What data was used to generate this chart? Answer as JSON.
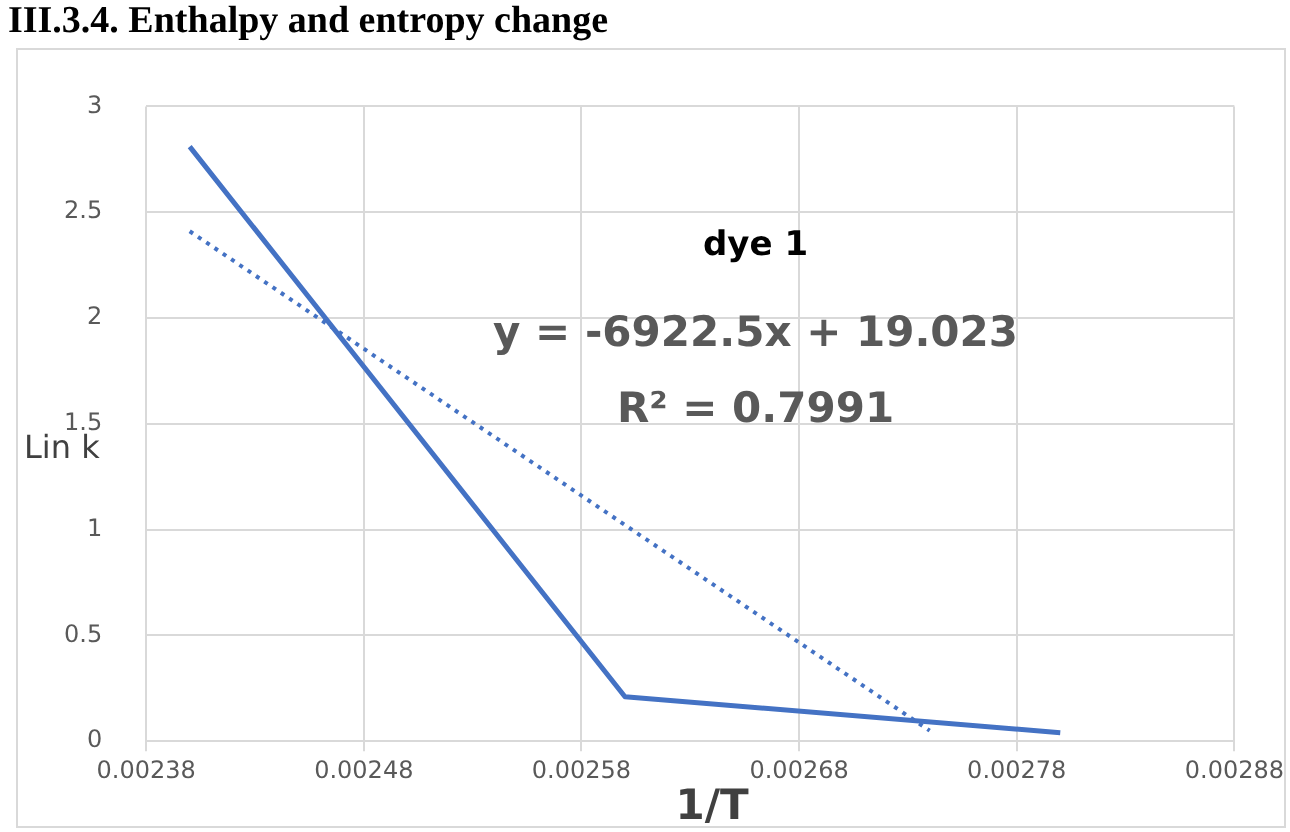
{
  "chart_data": {
    "type": "line",
    "title": "III.3.4. Enthalpy and entropy change",
    "xlabel": "1/T",
    "ylabel": "Lin k",
    "series": [
      {
        "type": "line",
        "color": "#4472c4",
        "line_style": "solid",
        "x": [
          0.0024,
          0.0026,
          0.0028
        ],
        "values": [
          2.81,
          0.21,
          0.04
        ]
      },
      {
        "type": "line",
        "color": "#4472c4",
        "line_style": "dotted",
        "x": [
          0.0024,
          0.00274
        ],
        "values": [
          2.41,
          0.05
        ]
      }
    ],
    "xlim": [
      0.00238,
      0.00288
    ],
    "xticks": [
      0.00238,
      0.00248,
      0.00258,
      0.00268,
      0.00278,
      0.00288
    ],
    "ylim": [
      0,
      3
    ],
    "yticks": [
      0,
      0.5,
      1,
      1.5,
      2,
      2.5,
      3
    ],
    "grid": true,
    "legend": false,
    "marker": "none",
    "annotations": [
      "dye 1",
      "y = -6922.5x + 19.023",
      "R² = 0.7991"
    ]
  }
}
